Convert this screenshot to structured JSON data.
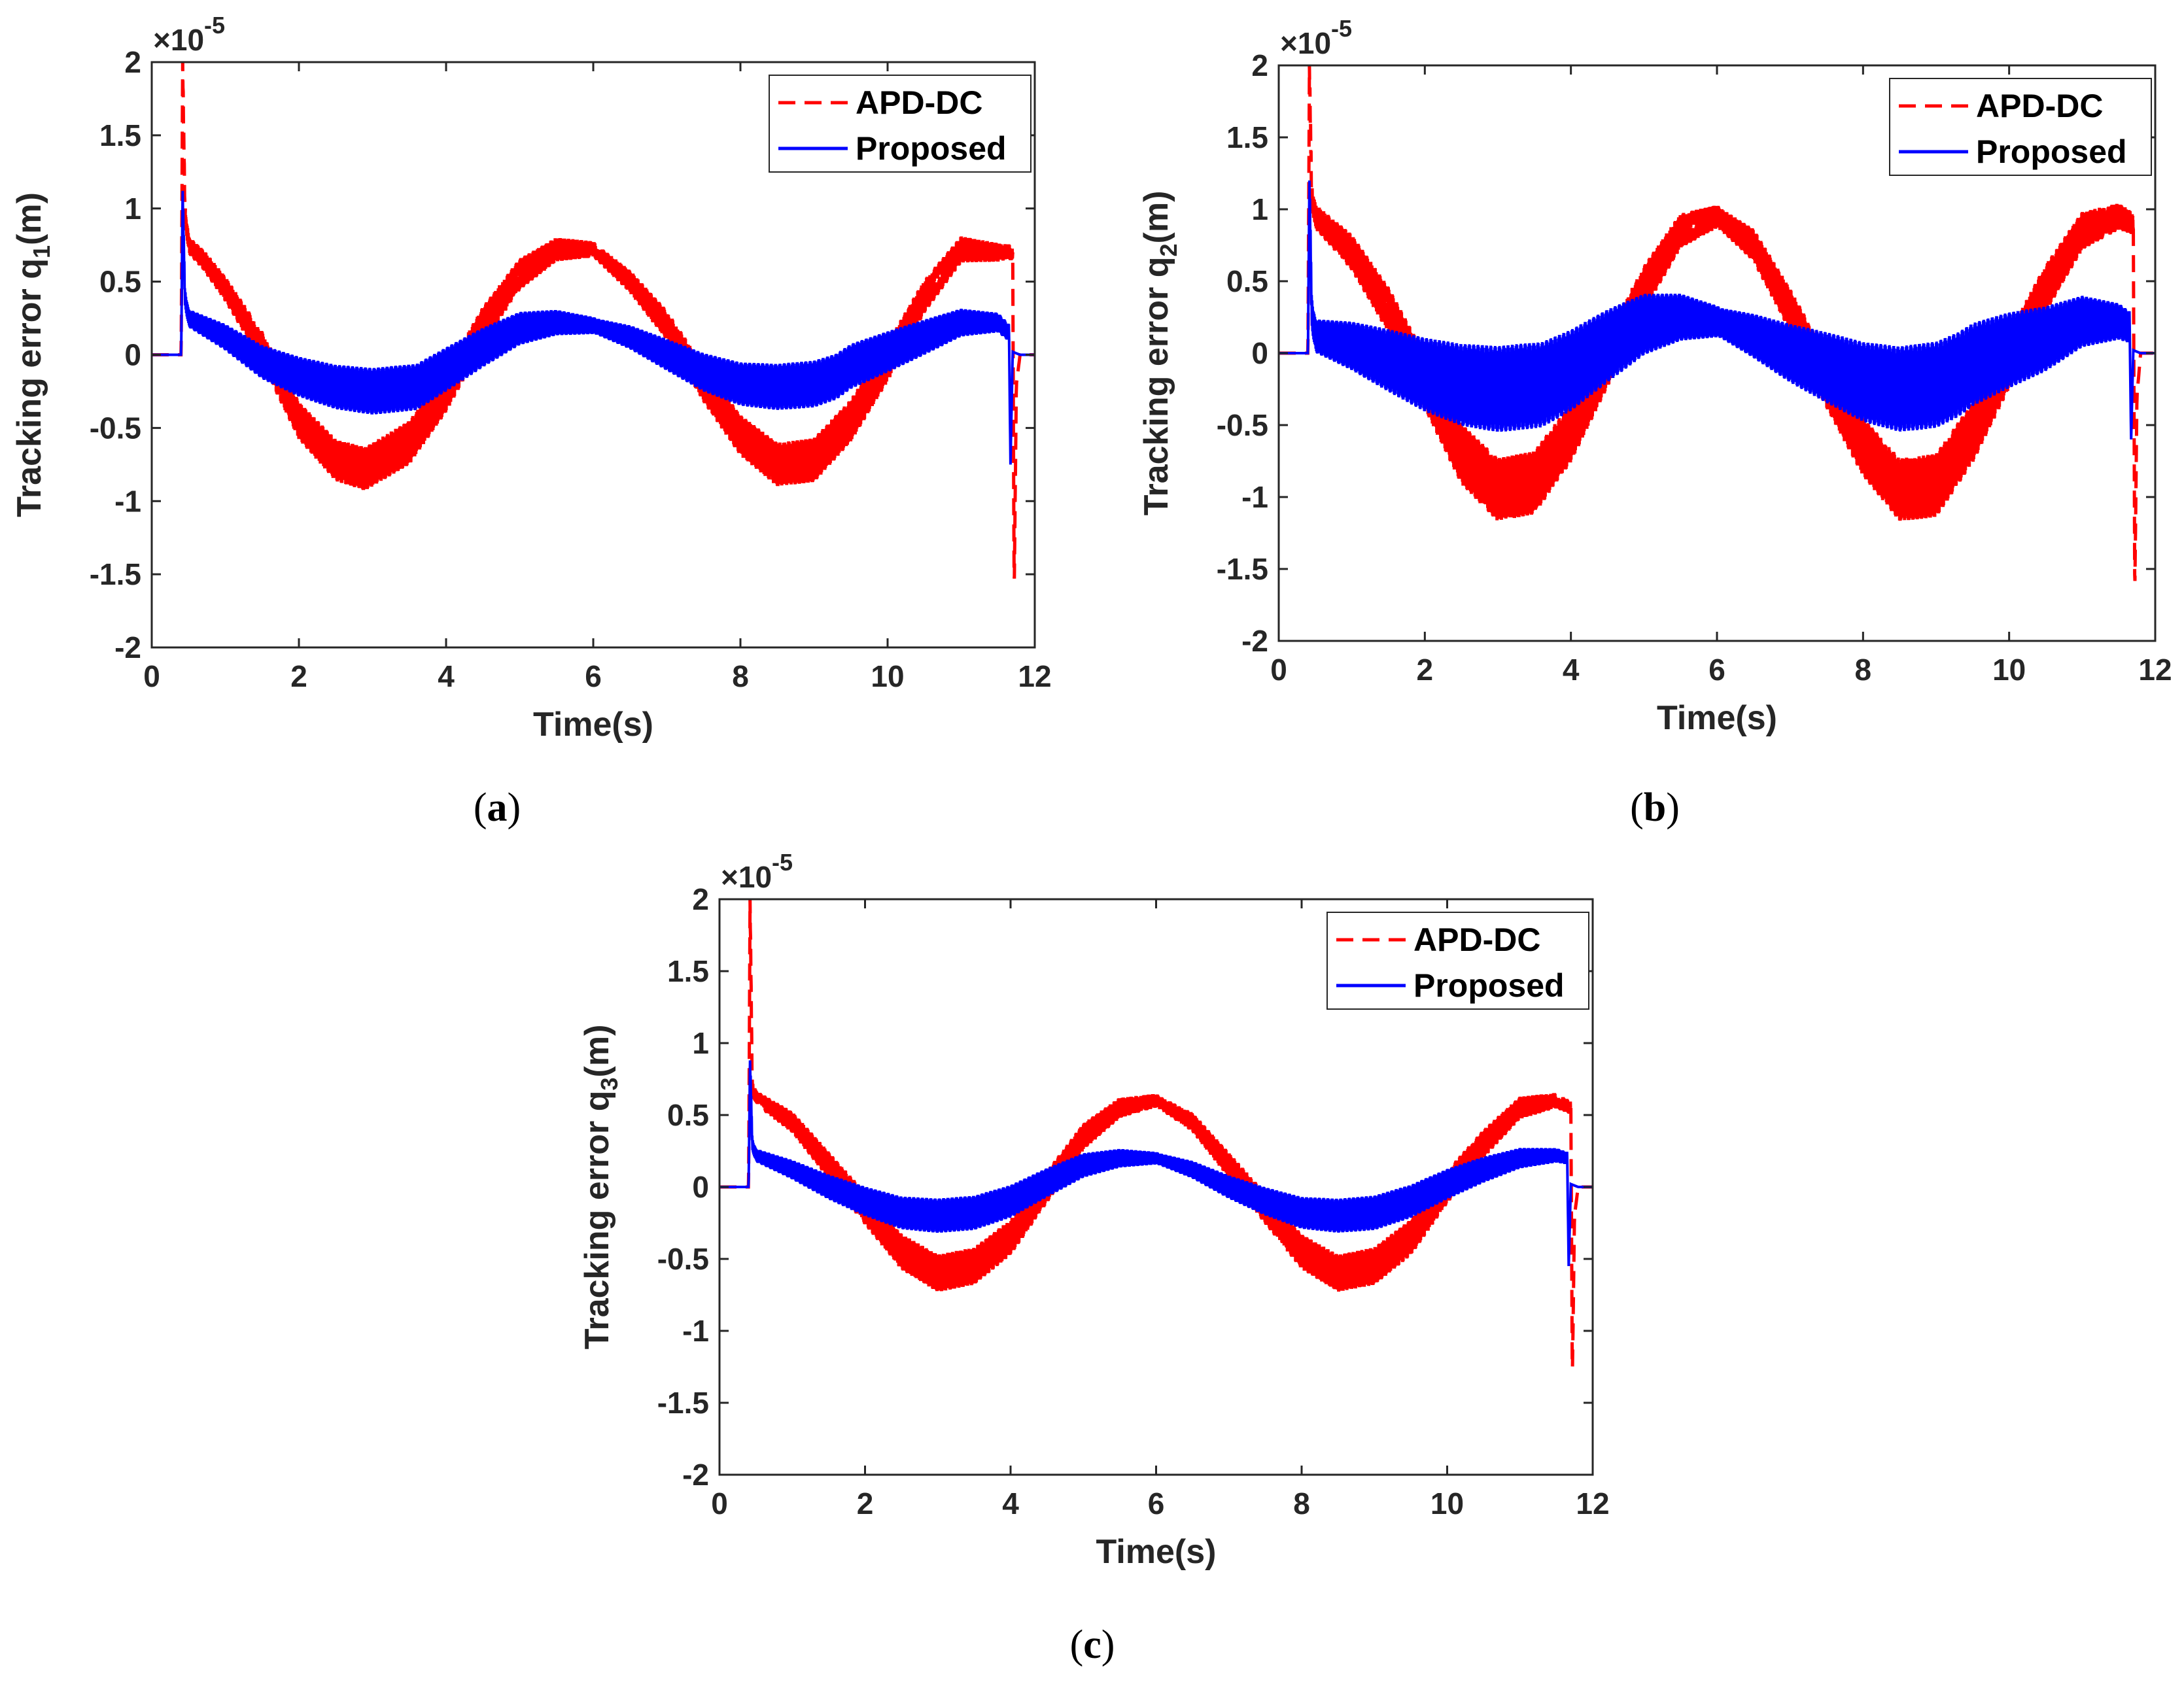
{
  "colors": {
    "apd": "#ff0000",
    "proposed": "#0000ff",
    "axis": "#262626"
  },
  "chart_data": [
    {
      "type": "line",
      "caption_label": "a",
      "title": "",
      "xlabel": "Time(s)",
      "ylabel": "Tracking error q",
      "ylabel_subscript": "1",
      "ylabel_unit": "(m)",
      "exponent_label": "×10",
      "exponent_power": "-5",
      "xlim": [
        0,
        12
      ],
      "ylim": [
        -2,
        2
      ],
      "xticks": [
        "0",
        "2",
        "4",
        "6",
        "8",
        "10",
        "12"
      ],
      "yticks": [
        "-2",
        "-1.5",
        "-1",
        "-0.5",
        "0",
        "0.5",
        "1",
        "1.5",
        "2"
      ],
      "legend_position": "top-right",
      "series": [
        {
          "name": "APD-DC",
          "style": "dashed",
          "color": "#ff0000",
          "amplitude": 0.65,
          "band": 0.15,
          "spike_start": 2.0,
          "spike_end": -1.65,
          "x": [
            0,
            0.4,
            0.42,
            0.45,
            0.5,
            0.7,
            1.0,
            1.5,
            2.0,
            2.5,
            2.9,
            3.5,
            4.0,
            4.5,
            5.0,
            5.5,
            6.0,
            6.5,
            7.0,
            7.5,
            8.0,
            8.5,
            9.0,
            9.5,
            10.0,
            10.5,
            11.0,
            11.5,
            11.7,
            11.72,
            11.75,
            11.8
          ],
          "y": [
            0,
            0,
            2.0,
            1.0,
            0.75,
            0.65,
            0.45,
            0.05,
            -0.45,
            -0.72,
            -0.78,
            -0.6,
            -0.25,
            0.2,
            0.55,
            0.72,
            0.72,
            0.5,
            0.2,
            -0.2,
            -0.55,
            -0.75,
            -0.72,
            -0.45,
            -0.05,
            0.4,
            0.72,
            0.7,
            0.7,
            -1.65,
            -0.2,
            0
          ]
        },
        {
          "name": "Proposed",
          "style": "solid",
          "color": "#0000ff",
          "amplitude": 0.3,
          "band": 0.16,
          "spike_start": 1.12,
          "spike_end": -0.75,
          "x": [
            0,
            0.4,
            0.42,
            0.45,
            0.5,
            1.0,
            1.5,
            2.0,
            2.5,
            3.0,
            3.6,
            4.0,
            4.5,
            5.0,
            5.5,
            6.0,
            6.5,
            7.0,
            7.5,
            8.0,
            8.5,
            9.0,
            9.3,
            9.5,
            10.0,
            10.5,
            11.0,
            11.5,
            11.65,
            11.67,
            11.7,
            11.8
          ],
          "y": [
            0,
            0,
            1.12,
            0.4,
            0.25,
            0.12,
            -0.05,
            -0.15,
            -0.22,
            -0.25,
            -0.22,
            -0.1,
            0.05,
            0.18,
            0.22,
            0.2,
            0.12,
            0.0,
            -0.12,
            -0.2,
            -0.22,
            -0.2,
            -0.15,
            -0.08,
            0.02,
            0.12,
            0.22,
            0.22,
            0.15,
            -0.75,
            0.02,
            0
          ]
        }
      ]
    },
    {
      "type": "line",
      "caption_label": "b",
      "title": "",
      "xlabel": "Time(s)",
      "ylabel": "Tracking error q",
      "ylabel_subscript": "2",
      "ylabel_unit": "(m)",
      "exponent_label": "×10",
      "exponent_power": "-5",
      "xlim": [
        0,
        12
      ],
      "ylim": [
        -2,
        2
      ],
      "xticks": [
        "0",
        "2",
        "4",
        "6",
        "8",
        "10",
        "12"
      ],
      "yticks": [
        "-2",
        "-1.5",
        "-1",
        "-0.5",
        "0",
        "0.5",
        "1",
        "1.5",
        "2"
      ],
      "legend_position": "top-right",
      "series": [
        {
          "name": "APD-DC",
          "style": "dashed",
          "color": "#ff0000",
          "amplitude": 0.9,
          "band": 0.22,
          "spike_start": 2.0,
          "spike_end": -1.7,
          "x": [
            0,
            0.4,
            0.42,
            0.45,
            0.5,
            1.0,
            1.5,
            2.0,
            2.5,
            3.0,
            3.5,
            4.0,
            4.5,
            5.0,
            5.5,
            6.0,
            6.5,
            7.0,
            7.5,
            8.0,
            8.5,
            9.0,
            9.5,
            10.0,
            10.5,
            11.0,
            11.5,
            11.7,
            11.72,
            11.75,
            11.8
          ],
          "y": [
            0,
            0,
            2.0,
            1.1,
            0.95,
            0.7,
            0.3,
            -0.2,
            -0.7,
            -0.95,
            -0.9,
            -0.55,
            -0.05,
            0.45,
            0.85,
            0.95,
            0.75,
            0.3,
            -0.2,
            -0.65,
            -0.95,
            -0.92,
            -0.55,
            -0.05,
            0.45,
            0.85,
            0.95,
            0.9,
            -1.7,
            -0.3,
            0
          ]
        },
        {
          "name": "Proposed",
          "style": "solid",
          "color": "#0000ff",
          "amplitude": 0.35,
          "band": 0.3,
          "spike_start": 1.2,
          "spike_end": -0.6,
          "x": [
            0,
            0.4,
            0.42,
            0.45,
            0.5,
            1.0,
            1.5,
            2.0,
            2.5,
            3.0,
            3.6,
            4.0,
            4.5,
            5.0,
            5.5,
            6.0,
            6.5,
            7.0,
            7.5,
            8.0,
            8.5,
            9.0,
            9.3,
            9.5,
            10.0,
            10.5,
            11.0,
            11.5,
            11.65,
            11.67,
            11.7,
            11.8
          ],
          "y": [
            0,
            0,
            1.2,
            0.3,
            0.12,
            0.05,
            -0.05,
            -0.15,
            -0.22,
            -0.25,
            -0.22,
            -0.12,
            0.05,
            0.2,
            0.25,
            0.22,
            0.12,
            0.0,
            -0.1,
            -0.2,
            -0.25,
            -0.22,
            -0.15,
            -0.08,
            0.02,
            0.1,
            0.22,
            0.22,
            0.18,
            -0.6,
            0.02,
            0
          ]
        }
      ]
    },
    {
      "type": "line",
      "caption_label": "c",
      "title": "",
      "xlabel": "Time(s)",
      "ylabel": "Tracking error q",
      "ylabel_subscript": "3",
      "ylabel_unit": "(m)",
      "exponent_label": "×10",
      "exponent_power": "-5",
      "xlim": [
        0,
        12
      ],
      "ylim": [
        -2,
        2
      ],
      "xticks": [
        "0",
        "2",
        "4",
        "6",
        "8",
        "10",
        "12"
      ],
      "yticks": [
        "-2",
        "-1.5",
        "-1",
        "-0.5",
        "0",
        "0.5",
        "1",
        "1.5",
        "2"
      ],
      "legend_position": "top-right",
      "series": [
        {
          "name": "APD-DC",
          "style": "dashed",
          "color": "#ff0000",
          "amplitude": 0.55,
          "band": 0.13,
          "spike_start": 2.0,
          "spike_end": -1.35,
          "x": [
            0,
            0.4,
            0.42,
            0.45,
            0.5,
            1.0,
            1.5,
            2.0,
            2.5,
            3.0,
            3.5,
            4.0,
            4.5,
            5.0,
            5.5,
            6.0,
            6.5,
            7.0,
            7.5,
            8.0,
            8.5,
            9.0,
            9.5,
            10.0,
            10.5,
            11.0,
            11.5,
            11.7,
            11.72,
            11.75,
            11.8
          ],
          "y": [
            0,
            0,
            2.0,
            0.7,
            0.62,
            0.45,
            0.15,
            -0.15,
            -0.45,
            -0.6,
            -0.55,
            -0.35,
            0.0,
            0.35,
            0.55,
            0.6,
            0.45,
            0.15,
            -0.15,
            -0.45,
            -0.6,
            -0.55,
            -0.35,
            0.0,
            0.3,
            0.55,
            0.6,
            0.55,
            -1.35,
            -0.2,
            0
          ]
        },
        {
          "name": "Proposed",
          "style": "solid",
          "color": "#0000ff",
          "amplitude": 0.22,
          "band": 0.12,
          "spike_start": 0.88,
          "spike_end": -0.55,
          "x": [
            0,
            0.4,
            0.42,
            0.45,
            0.5,
            1.0,
            1.5,
            2.0,
            2.5,
            3.0,
            3.5,
            4.0,
            4.5,
            5.0,
            5.5,
            6.0,
            6.5,
            7.0,
            7.5,
            8.0,
            8.5,
            9.0,
            9.5,
            10.0,
            10.5,
            11.0,
            11.5,
            11.65,
            11.67,
            11.7,
            11.8
          ],
          "y": [
            0,
            0,
            0.88,
            0.3,
            0.22,
            0.12,
            0.0,
            -0.1,
            -0.18,
            -0.2,
            -0.18,
            -0.1,
            0.03,
            0.15,
            0.2,
            0.2,
            0.12,
            0.0,
            -0.1,
            -0.18,
            -0.2,
            -0.18,
            -0.1,
            0.02,
            0.12,
            0.2,
            0.22,
            0.2,
            -0.55,
            0.02,
            0
          ]
        }
      ]
    }
  ]
}
